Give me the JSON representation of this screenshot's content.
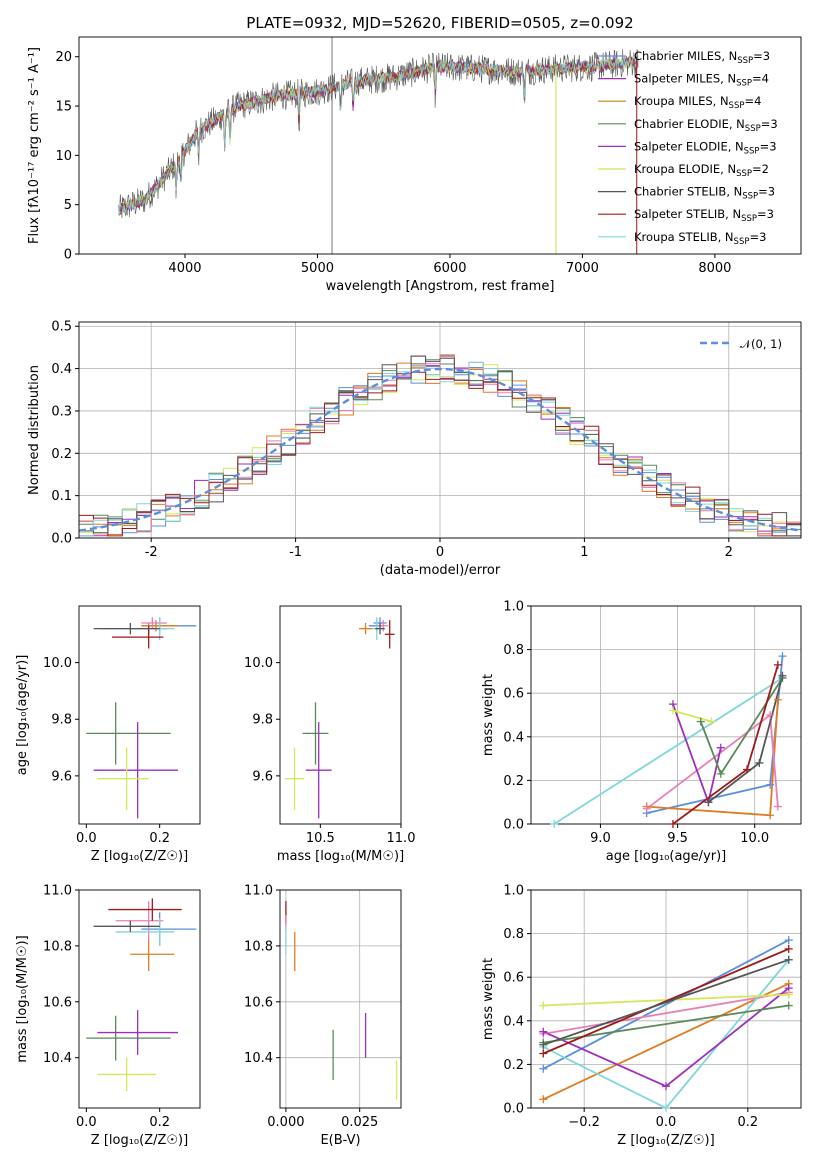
{
  "colors": {
    "blue": "#5b8fde",
    "purple": "#9d2fbc",
    "orange": "#e07b22",
    "lime": "#d4e85a",
    "green": "#5a8a5a",
    "pink": "#e87fb5",
    "cyan": "#7fd6dc",
    "darkred": "#9e1a1a",
    "gray": "#555555",
    "grid": "#b0b0b0"
  },
  "chart_data": [
    {
      "id": "spectrum",
      "type": "line",
      "title": "PLATE=0932, MJD=52620, FIBERID=0505, z=0.092",
      "xlabel": "wavelength [Angstrom, rest frame]",
      "ylabel": "Flux [fλ10⁻¹⁷ erg cm⁻² s⁻¹ A⁻¹]",
      "xlim": [
        3200,
        8650
      ],
      "ylim": [
        0,
        22
      ],
      "xticks": [
        4000,
        5000,
        6000,
        7000,
        8000
      ],
      "yticks": [
        0,
        5,
        10,
        15,
        20
      ],
      "grid": false,
      "legend_position": "upper-right",
      "data_range": [
        3500,
        7420
      ],
      "continuum": {
        "x": [
          3500,
          3700,
          3950,
          4100,
          4400,
          4700,
          5000,
          5300,
          5600,
          5900,
          6200,
          6500,
          6800,
          7100,
          7400
        ],
        "y": [
          4.5,
          5.5,
          9.5,
          12.5,
          15.0,
          16.0,
          16.5,
          17.5,
          18.0,
          19.0,
          18.8,
          18.5,
          18.8,
          19.0,
          19.5
        ]
      },
      "series": [
        {
          "name": "Chabrier MILES, N",
          "sub": "SSP",
          "suffix": "=3",
          "color": "#5b8fde"
        },
        {
          "name": "Salpeter MILES, N",
          "sub": "SSP",
          "suffix": "=4",
          "color": "#9d2fbc"
        },
        {
          "name": "Kroupa MILES, N",
          "sub": "SSP",
          "suffix": "=4",
          "color": "#b8860b"
        },
        {
          "name": "Chabrier ELODIE, N",
          "sub": "SSP",
          "suffix": "=3",
          "color": "#5a8a5a"
        },
        {
          "name": "Salpeter ELODIE, N",
          "sub": "SSP",
          "suffix": "=3",
          "color": "#9d2fbc"
        },
        {
          "name": "Kroupa ELODIE, N",
          "sub": "SSP",
          "suffix": "=2",
          "color": "#d4e85a"
        },
        {
          "name": "Chabrier STELIB, N",
          "sub": "SSP",
          "suffix": "=3",
          "color": "#555555"
        },
        {
          "name": "Salpeter STELIB, N",
          "sub": "SSP",
          "suffix": "=3",
          "color": "#9e1a1a"
        },
        {
          "name": "Kroupa STELIB, N",
          "sub": "SSP",
          "suffix": "=3",
          "color": "#7fd6dc"
        }
      ]
    },
    {
      "id": "residuals",
      "type": "line",
      "xlabel": "(data-model)/error",
      "ylabel": "Normed distribution",
      "xlim": [
        -2.5,
        2.5
      ],
      "ylim": [
        0,
        0.51
      ],
      "xticks": [
        -2,
        -1,
        0,
        1,
        2
      ],
      "yticks": [
        0.0,
        0.1,
        0.2,
        0.3,
        0.4,
        0.5
      ],
      "grid": true,
      "legend": "𝒩(0, 1)",
      "legend_position": "upper-right",
      "bin_width": 0.1,
      "gaussian": {
        "mean": 0,
        "sigma": 1,
        "style": "dashed",
        "color": "#5b8fde"
      },
      "histogram_colors": [
        "#5b8fde",
        "#9d2fbc",
        "#e07b22",
        "#d4e85a",
        "#5a8a5a",
        "#e87fb5",
        "#7fd6dc",
        "#9e1a1a",
        "#555555"
      ]
    },
    {
      "id": "age_vs_Z",
      "type": "scatter",
      "xlabel": "Z [log₁₀(Z/Z☉)]",
      "ylabel": "age  [log₁₀(age/yr)]",
      "xlim": [
        -0.02,
        0.31
      ],
      "ylim": [
        9.43,
        10.2
      ],
      "xticks": [
        0.0,
        0.2
      ],
      "yticks": [
        9.6,
        9.8,
        10.0
      ],
      "grid": false,
      "points": [
        {
          "x": 0.17,
          "y": 10.12,
          "xerr": [
            0.13,
            0.05
          ],
          "yerr": 0.02,
          "color": "#5b8fde"
        },
        {
          "x": 0.2,
          "y": 10.13,
          "xerr": [
            0.05,
            0.1
          ],
          "yerr": 0.03,
          "color": "#5b8fde"
        },
        {
          "x": 0.19,
          "y": 10.13,
          "xerr": [
            0.04,
            0.06
          ],
          "yerr": 0.02,
          "color": "#e07b22"
        },
        {
          "x": 0.18,
          "y": 10.14,
          "xerr": [
            0.03,
            0.04
          ],
          "yerr": 0.02,
          "color": "#e87fb5"
        },
        {
          "x": 0.2,
          "y": 10.12,
          "xerr": [
            0.08,
            0.04
          ],
          "yerr": 0.04,
          "color": "#7fd6dc"
        },
        {
          "x": 0.17,
          "y": 10.09,
          "xerr": [
            0.1,
            0.04
          ],
          "yerr": 0.04,
          "color": "#9e1a1a"
        },
        {
          "x": 0.12,
          "y": 10.12,
          "xerr": [
            0.1,
            0.08
          ],
          "yerr": 0.02,
          "color": "#555555"
        },
        {
          "x": 0.08,
          "y": 9.75,
          "xerr": [
            0.08,
            0.15
          ],
          "yerr": 0.11,
          "color": "#5a8a5a"
        },
        {
          "x": 0.14,
          "y": 9.62,
          "xerr": [
            0.12,
            0.11
          ],
          "yerr": 0.17,
          "color": "#9d2fbc"
        },
        {
          "x": 0.11,
          "y": 9.59,
          "xerr": [
            0.08,
            0.06
          ],
          "yerr": 0.11,
          "color": "#d4e85a"
        }
      ]
    },
    {
      "id": "age_vs_mass",
      "type": "scatter",
      "xlabel": "mass [log₁₀(M/M☉)]",
      "xlim": [
        10.25,
        11.0
      ],
      "ylim": [
        9.43,
        10.2
      ],
      "xticks": [
        10.5,
        11.0
      ],
      "yticks": [
        9.6,
        9.8,
        10.0
      ],
      "grid": false,
      "points": [
        {
          "x": 10.87,
          "y": 10.14,
          "xerr": 0.04,
          "yerr": 0.02,
          "color": "#5b8fde"
        },
        {
          "x": 10.85,
          "y": 10.13,
          "xerr": 0.05,
          "yerr": 0.02,
          "color": "#5b8fde"
        },
        {
          "x": 10.78,
          "y": 10.12,
          "xerr": 0.04,
          "yerr": 0.02,
          "color": "#e07b22"
        },
        {
          "x": 10.89,
          "y": 10.13,
          "xerr": 0.03,
          "yerr": 0.02,
          "color": "#e87fb5"
        },
        {
          "x": 10.85,
          "y": 10.12,
          "xerr": 0.03,
          "yerr": 0.04,
          "color": "#7fd6dc"
        },
        {
          "x": 10.93,
          "y": 10.1,
          "xerr": 0.03,
          "yerr": 0.05,
          "color": "#9e1a1a"
        },
        {
          "x": 10.87,
          "y": 10.12,
          "xerr": 0.03,
          "yerr": 0.02,
          "color": "#555555"
        },
        {
          "x": 10.47,
          "y": 9.75,
          "xerr": 0.08,
          "yerr": 0.11,
          "color": "#5a8a5a"
        },
        {
          "x": 10.49,
          "y": 9.62,
          "xerr": 0.08,
          "yerr": 0.17,
          "color": "#9d2fbc"
        },
        {
          "x": 10.34,
          "y": 9.59,
          "xerr": 0.06,
          "yerr": 0.11,
          "color": "#d4e85a"
        }
      ]
    },
    {
      "id": "weight_vs_age",
      "type": "line",
      "xlabel": "age  [log₁₀(age/yr)]",
      "ylabel": "mass weight",
      "xlim": [
        8.55,
        10.3
      ],
      "ylim": [
        0,
        1.0
      ],
      "xticks": [
        9.0,
        9.5,
        10.0
      ],
      "yticks": [
        0.0,
        0.2,
        0.4,
        0.6,
        0.8,
        1.0
      ],
      "grid": true,
      "series": [
        {
          "color": "#7fd6dc",
          "x": [
            8.7,
            10.18
          ],
          "y": [
            0.0,
            0.67
          ]
        },
        {
          "color": "#5b8fde",
          "x": [
            9.3,
            10.1,
            10.18
          ],
          "y": [
            0.05,
            0.18,
            0.77
          ]
        },
        {
          "color": "#e07b22",
          "x": [
            9.3,
            10.1,
            10.15
          ],
          "y": [
            0.08,
            0.04,
            0.57
          ]
        },
        {
          "color": "#e87fb5",
          "x": [
            9.3,
            10.1,
            10.15
          ],
          "y": [
            0.07,
            0.5,
            0.08
          ]
        },
        {
          "color": "#9d2fbc",
          "x": [
            9.47,
            9.7,
            9.78
          ],
          "y": [
            0.55,
            0.1,
            0.35
          ]
        },
        {
          "color": "#d4e85a",
          "x": [
            9.47,
            9.72
          ],
          "y": [
            0.52,
            0.47
          ]
        },
        {
          "color": "#5a8a5a",
          "x": [
            9.65,
            9.78,
            10.18
          ],
          "y": [
            0.47,
            0.23,
            0.67
          ]
        },
        {
          "color": "#9e1a1a",
          "x": [
            9.47,
            9.95,
            10.15
          ],
          "y": [
            0.0,
            0.25,
            0.73
          ]
        },
        {
          "color": "#555555",
          "x": [
            9.7,
            10.03,
            10.18
          ],
          "y": [
            0.1,
            0.28,
            0.68
          ]
        }
      ]
    },
    {
      "id": "mass_vs_Z",
      "type": "scatter",
      "xlabel": "Z [log₁₀(Z/Z☉)]",
      "ylabel": "mass [log₁₀(M/M☉)]",
      "xlim": [
        -0.02,
        0.31
      ],
      "ylim": [
        10.22,
        11.0
      ],
      "xticks": [
        0.0,
        0.2
      ],
      "yticks": [
        10.4,
        10.6,
        10.8,
        11.0
      ],
      "grid": false,
      "points": [
        {
          "x": 0.2,
          "y": 10.86,
          "xerr": [
            0.05,
            0.1
          ],
          "yerr": 0.06,
          "color": "#5b8fde"
        },
        {
          "x": 0.17,
          "y": 10.77,
          "xerr": [
            0.05,
            0.07
          ],
          "yerr": 0.06,
          "color": "#e07b22"
        },
        {
          "x": 0.17,
          "y": 10.89,
          "xerr": [
            0.09,
            0.04
          ],
          "yerr": 0.07,
          "color": "#e87fb5"
        },
        {
          "x": 0.2,
          "y": 10.85,
          "xerr": [
            0.12,
            0.04
          ],
          "yerr": 0.05,
          "color": "#7fd6dc"
        },
        {
          "x": 0.18,
          "y": 10.93,
          "xerr": [
            0.12,
            0.08
          ],
          "yerr": 0.04,
          "color": "#9e1a1a"
        },
        {
          "x": 0.12,
          "y": 10.87,
          "xerr": [
            0.1,
            0.08
          ],
          "yerr": 0.02,
          "color": "#555555"
        },
        {
          "x": 0.08,
          "y": 10.47,
          "xerr": [
            0.08,
            0.15
          ],
          "yerr": 0.08,
          "color": "#5a8a5a"
        },
        {
          "x": 0.14,
          "y": 10.49,
          "xerr": [
            0.11,
            0.11
          ],
          "yerr": 0.08,
          "color": "#9d2fbc"
        },
        {
          "x": 0.11,
          "y": 10.34,
          "xerr": [
            0.08,
            0.08
          ],
          "yerr": 0.06,
          "color": "#d4e85a"
        }
      ]
    },
    {
      "id": "mass_vs_EBV",
      "type": "scatter",
      "xlabel": "E(B-V)",
      "xlim": [
        -0.002,
        0.039
      ],
      "ylim": [
        10.22,
        11.0
      ],
      "xticks": [
        0.0,
        0.025
      ],
      "yticks": [
        10.4,
        10.6,
        10.8,
        11.0
      ],
      "grid": true,
      "points": [
        {
          "x": 0.0,
          "y": 10.92,
          "yerr": 0.04,
          "color": "#9e1a1a"
        },
        {
          "x": 0.0,
          "y": 10.88,
          "yerr": 0.03,
          "color": "#e87fb5"
        },
        {
          "x": 0.0,
          "y": 10.82,
          "yerr": 0.05,
          "color": "#7fd6dc"
        },
        {
          "x": 0.003,
          "y": 10.78,
          "yerr": 0.07,
          "color": "#e07b22"
        },
        {
          "x": 0.016,
          "y": 10.41,
          "yerr": 0.09,
          "color": "#5a8a5a"
        },
        {
          "x": 0.027,
          "y": 10.48,
          "yerr": 0.08,
          "color": "#9d2fbc"
        },
        {
          "x": 0.0375,
          "y": 10.32,
          "yerr": 0.07,
          "color": "#d4e85a"
        }
      ]
    },
    {
      "id": "weight_vs_Z",
      "type": "line",
      "xlabel": "Z [log₁₀(Z/Z☉)]",
      "ylabel": "mass weight",
      "xlim": [
        -0.33,
        0.33
      ],
      "ylim": [
        0,
        1.0
      ],
      "xticks": [
        -0.2,
        0.0,
        0.2
      ],
      "yticks": [
        0.0,
        0.2,
        0.4,
        0.6,
        0.8,
        1.0
      ],
      "grid": true,
      "series": [
        {
          "color": "#5b8fde",
          "x": [
            -0.3,
            0.3
          ],
          "y": [
            0.18,
            0.77
          ]
        },
        {
          "color": "#e07b22",
          "x": [
            -0.3,
            0.3
          ],
          "y": [
            0.04,
            0.57
          ]
        },
        {
          "color": "#e87fb5",
          "x": [
            -0.3,
            0.3
          ],
          "y": [
            0.34,
            0.53
          ]
        },
        {
          "color": "#7fd6dc",
          "x": [
            -0.3,
            0.0,
            0.3
          ],
          "y": [
            0.28,
            0.0,
            0.68
          ]
        },
        {
          "color": "#9d2fbc",
          "x": [
            -0.3,
            0.0,
            0.3
          ],
          "y": [
            0.35,
            0.1,
            0.55
          ]
        },
        {
          "color": "#d4e85a",
          "x": [
            -0.3,
            0.3
          ],
          "y": [
            0.47,
            0.52
          ]
        },
        {
          "color": "#5a8a5a",
          "x": [
            -0.3,
            0.3
          ],
          "y": [
            0.3,
            0.47
          ]
        },
        {
          "color": "#9e1a1a",
          "x": [
            -0.3,
            0.3
          ],
          "y": [
            0.25,
            0.73
          ]
        },
        {
          "color": "#555555",
          "x": [
            -0.3,
            0.3
          ],
          "y": [
            0.29,
            0.68
          ]
        }
      ]
    }
  ]
}
